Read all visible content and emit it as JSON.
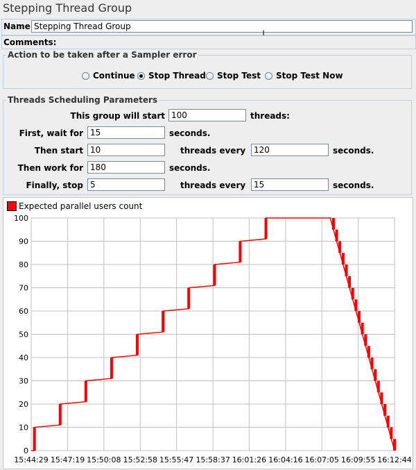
{
  "title": "Stepping Thread Group",
  "name_label": "Name:",
  "name_value": "Stepping Thread Group",
  "comments_label": "Comments:",
  "action_group": {
    "legend": "Action to be taken after a Sampler error",
    "options": [
      "Continue",
      "Stop Thread",
      "Stop Test",
      "Stop Test Now"
    ],
    "selected": "Stop Thread"
  },
  "sched": {
    "legend": "Threads Scheduling Parameters",
    "start_label": "This group will start",
    "start_value": "100",
    "threads_suffix": "threads:",
    "wait_label": "First, wait for",
    "wait_value": "15",
    "seconds": "seconds.",
    "then_start_label": "Then start",
    "then_start_value": "10",
    "threads_every": "threads every",
    "then_every_value": "120",
    "work_label": "Then work for",
    "work_value": "180",
    "stop_label": "Finally, stop",
    "stop_value": "5",
    "stop_every_value": "15"
  },
  "colors": {
    "series": "#ff0000",
    "grid": "#c0c0c0"
  },
  "chart_data": {
    "type": "line",
    "legend": [
      "Expected parallel users count"
    ],
    "legend_position": "top-left",
    "grid": true,
    "ylim": [
      0,
      100
    ],
    "yticks": [
      "0",
      "10",
      "20",
      "30",
      "40",
      "50",
      "60",
      "70",
      "80",
      "90",
      "100"
    ],
    "xticks": [
      "15:44:29",
      "15:47:19",
      "15:50:08",
      "15:52:58",
      "15:55:47",
      "15:58:37",
      "16:01:26",
      "16:04:16",
      "16:07:05",
      "16:09:55",
      "16:12:44"
    ],
    "series": [
      {
        "name": "Expected parallel users count",
        "points": [
          [
            "15:44:29",
            0
          ],
          [
            "15:44:44",
            0
          ],
          [
            "15:44:44",
            10
          ],
          [
            "15:46:44",
            11
          ],
          [
            "15:46:44",
            20
          ],
          [
            "15:48:44",
            21
          ],
          [
            "15:48:44",
            30
          ],
          [
            "15:50:44",
            31
          ],
          [
            "15:50:44",
            40
          ],
          [
            "15:52:44",
            41
          ],
          [
            "15:52:44",
            50
          ],
          [
            "15:54:44",
            51
          ],
          [
            "15:54:44",
            60
          ],
          [
            "15:56:44",
            61
          ],
          [
            "15:56:44",
            70
          ],
          [
            "15:58:44",
            71
          ],
          [
            "15:58:44",
            80
          ],
          [
            "16:00:44",
            81
          ],
          [
            "16:00:44",
            90
          ],
          [
            "16:02:44",
            91
          ],
          [
            "16:02:44",
            100
          ],
          [
            "16:07:44",
            100
          ],
          [
            "16:07:59",
            95
          ],
          [
            "16:08:14",
            90
          ],
          [
            "16:08:29",
            85
          ],
          [
            "16:08:44",
            80
          ],
          [
            "16:08:59",
            75
          ],
          [
            "16:09:14",
            70
          ],
          [
            "16:09:29",
            65
          ],
          [
            "16:09:44",
            60
          ],
          [
            "16:09:59",
            55
          ],
          [
            "16:10:14",
            50
          ],
          [
            "16:10:29",
            45
          ],
          [
            "16:10:44",
            40
          ],
          [
            "16:10:59",
            35
          ],
          [
            "16:11:14",
            30
          ],
          [
            "16:11:29",
            25
          ],
          [
            "16:11:44",
            20
          ],
          [
            "16:11:59",
            15
          ],
          [
            "16:12:14",
            10
          ],
          [
            "16:12:29",
            5
          ],
          [
            "16:12:44",
            0
          ]
        ]
      }
    ]
  }
}
